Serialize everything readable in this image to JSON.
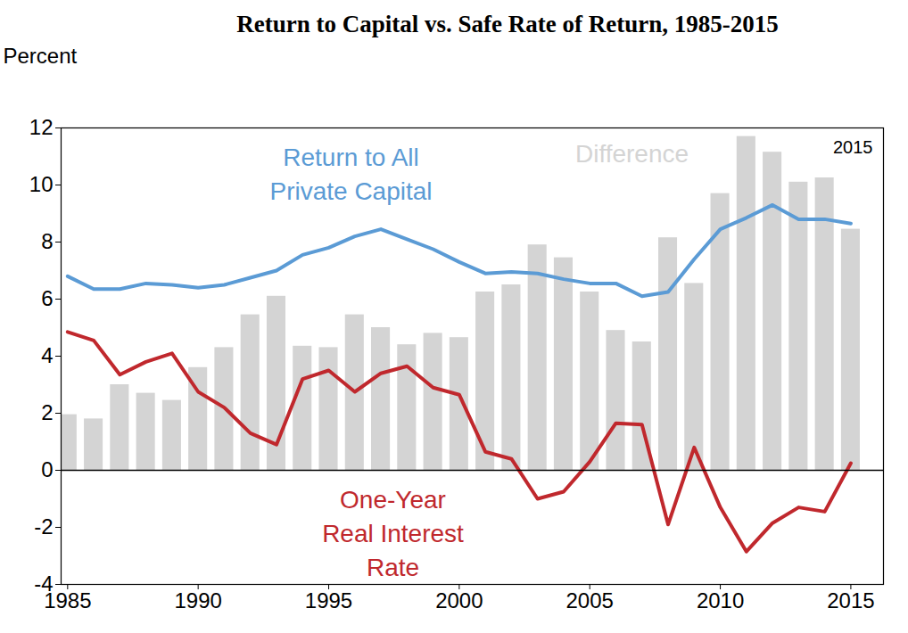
{
  "chart_data": {
    "type": "line",
    "title": "Return to Capital vs. Safe Rate of Return, 1985-2015",
    "ylabel": "Percent",
    "x": [
      1985,
      1986,
      1987,
      1988,
      1989,
      1990,
      1991,
      1992,
      1993,
      1994,
      1995,
      1996,
      1997,
      1998,
      1999,
      2000,
      2001,
      2002,
      2003,
      2004,
      2005,
      2006,
      2007,
      2008,
      2009,
      2010,
      2011,
      2012,
      2013,
      2014,
      2015
    ],
    "series": [
      {
        "name": "Difference",
        "type": "bar",
        "color": "#d4d4d4",
        "values": [
          1.95,
          1.8,
          3.0,
          2.7,
          2.45,
          3.6,
          4.3,
          5.45,
          6.1,
          4.35,
          4.3,
          5.45,
          5.0,
          4.4,
          4.8,
          4.65,
          6.25,
          6.5,
          7.9,
          7.45,
          6.25,
          4.9,
          4.5,
          8.15,
          6.55,
          9.7,
          11.7,
          11.15,
          10.1,
          10.25,
          8.45
        ]
      },
      {
        "name": "Return to All\nPrivate Capital",
        "type": "line",
        "color": "#5b9bd5",
        "values": [
          6.8,
          6.35,
          6.35,
          6.55,
          6.5,
          6.4,
          6.5,
          6.75,
          7.0,
          7.55,
          7.8,
          8.2,
          8.45,
          8.1,
          7.75,
          7.3,
          6.9,
          6.95,
          6.9,
          6.7,
          6.55,
          6.55,
          6.1,
          6.25,
          7.4,
          8.45,
          8.85,
          9.3,
          8.8,
          8.8,
          8.65
        ]
      },
      {
        "name": "One-Year\nReal Interest\nRate",
        "type": "line",
        "color": "#c0282d",
        "values": [
          4.85,
          4.55,
          3.35,
          3.8,
          4.1,
          2.75,
          2.2,
          1.3,
          0.9,
          3.2,
          3.5,
          2.75,
          3.4,
          3.65,
          2.9,
          2.65,
          0.65,
          0.4,
          -1.0,
          -0.75,
          0.3,
          1.65,
          1.6,
          -1.9,
          0.8,
          -1.3,
          -2.85,
          -1.85,
          -1.3,
          -1.45,
          0.25
        ]
      }
    ],
    "xlim": [
      1984.75,
      2016.25
    ],
    "xticks": [
      1985,
      1990,
      1995,
      2000,
      2005,
      2010,
      2015
    ],
    "ylim": [
      -4,
      12
    ],
    "yticks": [
      -4,
      -2,
      0,
      2,
      4,
      6,
      8,
      10,
      12
    ],
    "grid": false,
    "annotations": [
      {
        "text": "2015"
      }
    ]
  }
}
